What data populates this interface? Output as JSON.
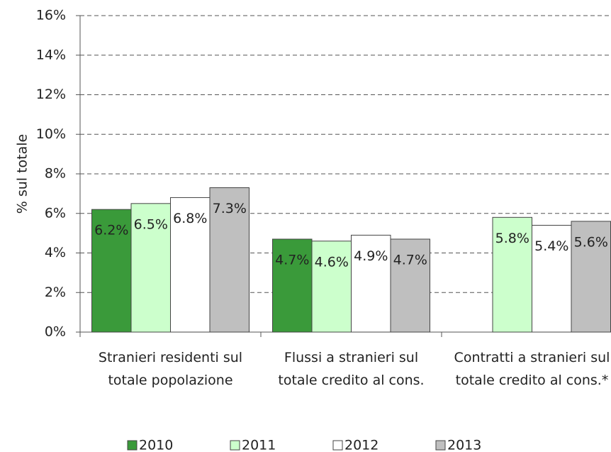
{
  "chart_data": {
    "type": "bar",
    "y_label": "% sul totale",
    "categories": [
      "Stranieri residenti sul totale popolazione",
      "Flussi a stranieri sul totale credito al cons.",
      "Contratti a stranieri sul totale credito al cons.*"
    ],
    "series": [
      {
        "name": "2010",
        "color": "#3a9a3a",
        "values": [
          6.2,
          4.7,
          null
        ],
        "value_labels": [
          "6.2%",
          "4.7%",
          null
        ]
      },
      {
        "name": "2011",
        "color": "#ccffcc",
        "values": [
          6.5,
          4.6,
          5.8
        ],
        "value_labels": [
          "6.5%",
          "4.6%",
          "5.8%"
        ]
      },
      {
        "name": "2012",
        "color": "#ffffff",
        "values": [
          6.8,
          4.9,
          5.4
        ],
        "value_labels": [
          "6.8%",
          "4.9%",
          "5.4%"
        ]
      },
      {
        "name": "2013",
        "color": "#bfbfbf",
        "values": [
          7.3,
          4.7,
          5.6
        ],
        "value_labels": [
          "7.3%",
          "4.7%",
          "5.6%"
        ]
      }
    ],
    "ylim": [
      0,
      16
    ],
    "yticks": [
      {
        "value": 0,
        "label": "0%"
      },
      {
        "value": 2,
        "label": "2%"
      },
      {
        "value": 4,
        "label": "4%"
      },
      {
        "value": 6,
        "label": "6%"
      },
      {
        "value": 8,
        "label": "8%"
      },
      {
        "value": 10,
        "label": "10%"
      },
      {
        "value": 12,
        "label": "12%"
      },
      {
        "value": 14,
        "label": "14%"
      },
      {
        "value": 16,
        "label": "16%"
      }
    ],
    "grid": true,
    "legend": "bottom"
  }
}
